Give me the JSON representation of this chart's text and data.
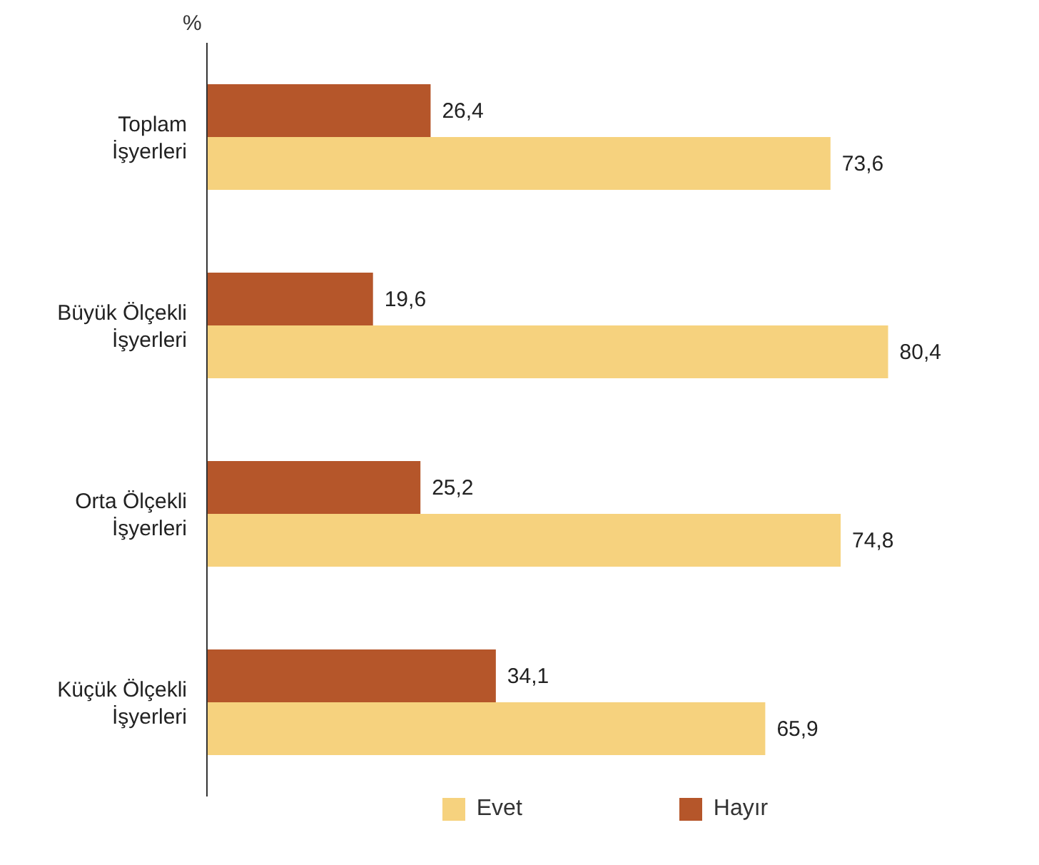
{
  "chart_data": {
    "type": "bar",
    "orientation": "horizontal",
    "ylabel": "%",
    "categories": [
      "Toplam\nİşyerleri",
      "Büyük Ölçekli\nİşyerleri",
      "Orta Ölçekli\nİşyerleri",
      "Küçük Ölçekli\nİşyerleri"
    ],
    "series": [
      {
        "name": "Hayır",
        "color": "#b5562a",
        "values": [
          26.4,
          19.6,
          25.2,
          34.1
        ],
        "value_labels": [
          "26,4",
          "19,6",
          "25,2",
          "34,1"
        ]
      },
      {
        "name": "Evet",
        "color": "#f6d27e",
        "values": [
          73.6,
          80.4,
          74.8,
          65.9
        ],
        "value_labels": [
          "73,6",
          "80,4",
          "74,8",
          "65,9"
        ]
      }
    ],
    "legend": "bottom",
    "grid": false
  }
}
